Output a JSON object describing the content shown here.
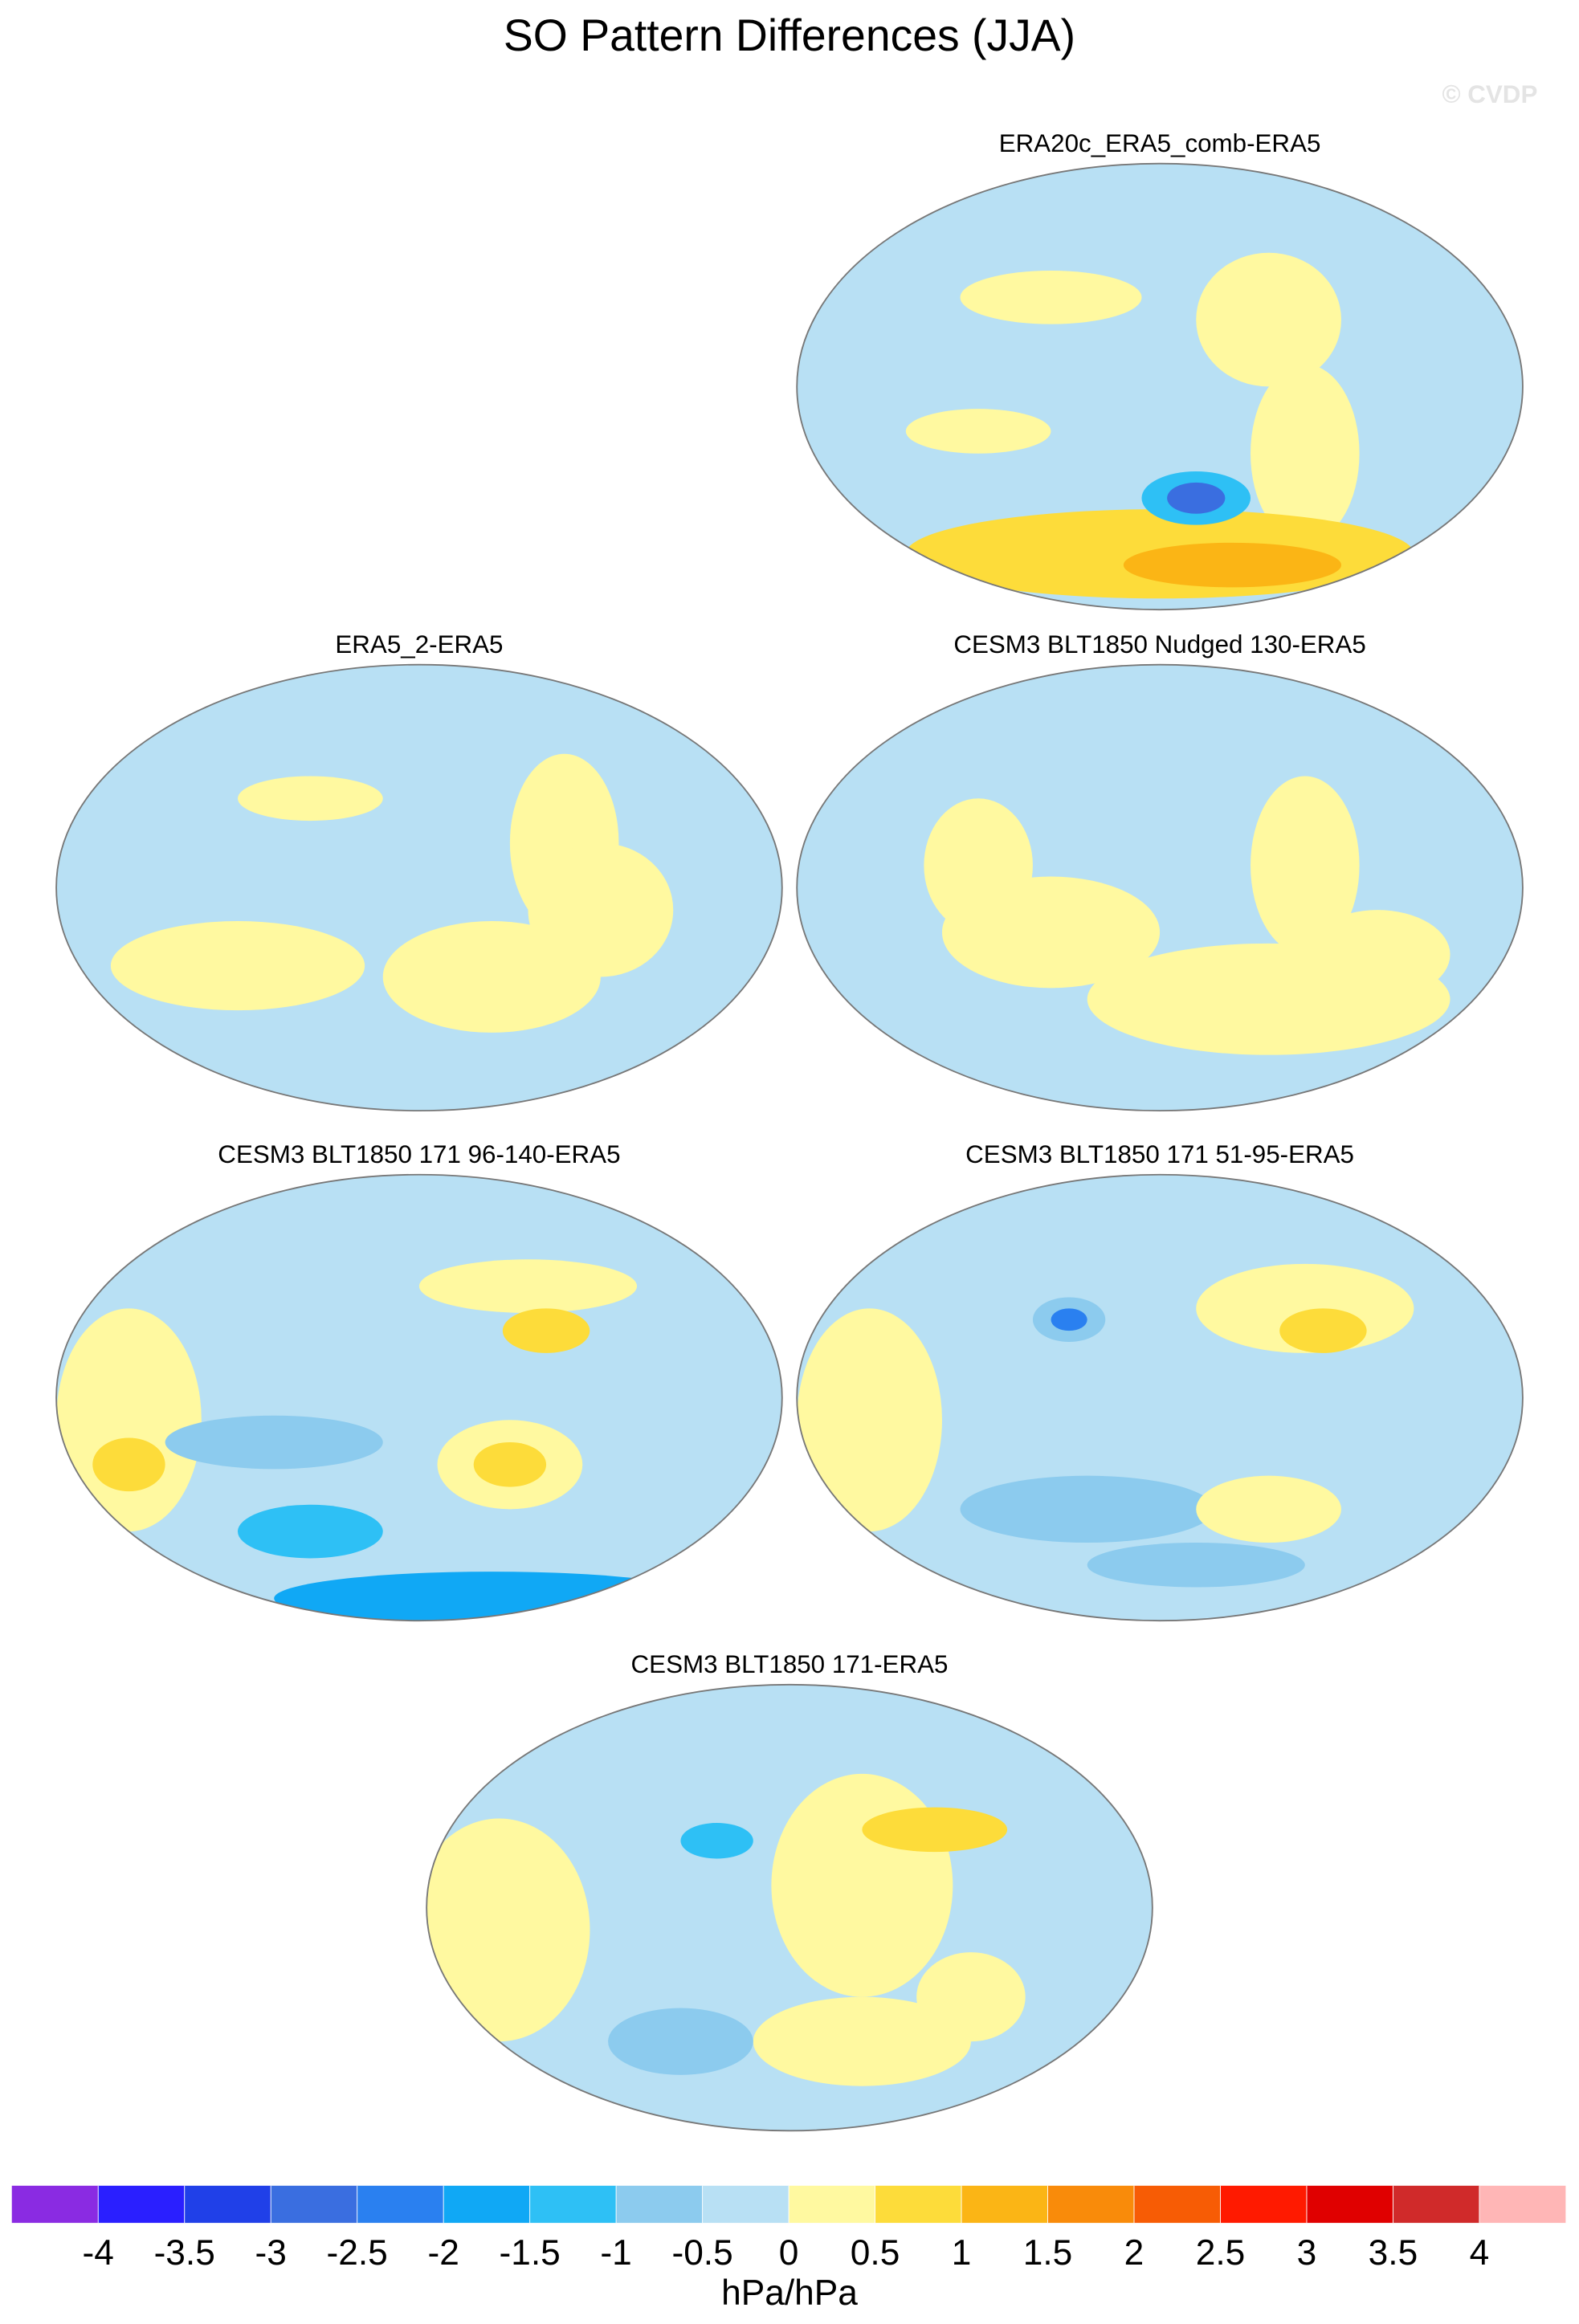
{
  "title": "SO Pattern Differences (JJA)",
  "watermark": "© CVDP",
  "panels": [
    {
      "title": "ERA20c_ERA5_comb-ERA5"
    },
    {
      "title": "ERA5_2-ERA5"
    },
    {
      "title": "CESM3 BLT1850 Nudged 130-ERA5"
    },
    {
      "title": "CESM3 BLT1850 171 96-140-ERA5"
    },
    {
      "title": "CESM3 BLT1850 171 51-95-ERA5"
    },
    {
      "title": "CESM3 BLT1850 171-ERA5"
    }
  ],
  "colorbar": {
    "colors": [
      "#8a2be2",
      "#2a1fff",
      "#2040e8",
      "#3a6ee0",
      "#2a80f0",
      "#10a8f5",
      "#2ec0f5",
      "#8ccbee",
      "#b8e0f4",
      "#fff9a0",
      "#fddc3a",
      "#fbb515",
      "#f98b0a",
      "#f75c05",
      "#ff1a00",
      "#e00000",
      "#d02a2a",
      "#ffb6b6"
    ],
    "levels": [
      -4,
      -3.5,
      -3,
      -2.5,
      -2,
      -1.5,
      -1,
      -0.5,
      0,
      0.5,
      1,
      1.5,
      2,
      2.5,
      3,
      3.5,
      4
    ],
    "label": "hPa/hPa"
  }
}
